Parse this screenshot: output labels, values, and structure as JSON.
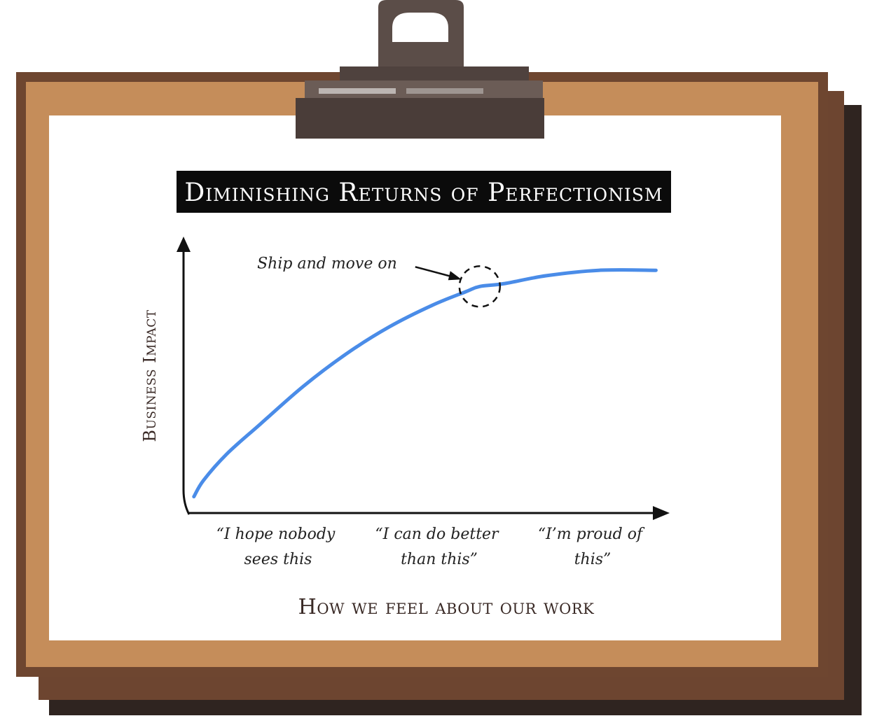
{
  "chart_data": {
    "type": "line",
    "title": "Diminishing Returns of Perfectionism",
    "xlabel": "How we feel about our work",
    "ylabel": "Business Impact",
    "categories": [
      {
        "line1": "“I hope nobody",
        "line2": "sees this"
      },
      {
        "line1": "“I can do better",
        "line2": "than this”"
      },
      {
        "line1": "“I’m proud of",
        "line2": "this”"
      }
    ],
    "xlim": [
      0,
      100
    ],
    "ylim": [
      0,
      100
    ],
    "grid": false,
    "legend": "none",
    "series": [
      {
        "color": "#4a8ce8",
        "points": [
          [
            1,
            4
          ],
          [
            3,
            10
          ],
          [
            8,
            20
          ],
          [
            15,
            31
          ],
          [
            24,
            45
          ],
          [
            33,
            57
          ],
          [
            42,
            67
          ],
          [
            51,
            75
          ],
          [
            58,
            80
          ],
          [
            61,
            82
          ],
          [
            66,
            83
          ],
          [
            75,
            86
          ],
          [
            86,
            88
          ],
          [
            98,
            88
          ]
        ]
      }
    ],
    "annotations": [
      {
        "text": "Ship and move on",
        "x": 61,
        "y": 82
      }
    ]
  },
  "colors": {
    "board": "#c58d5a",
    "board_dark": "#7b4e33",
    "board_shadow": "#3a2a22",
    "clip": "#5b4d48",
    "line": "#4a8ce8"
  }
}
